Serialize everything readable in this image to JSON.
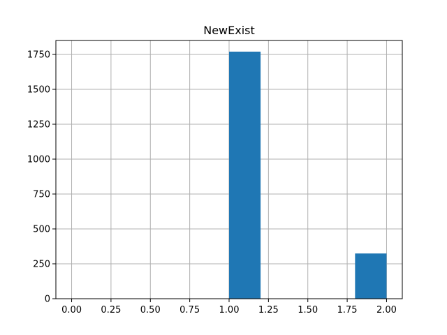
{
  "chart_data": {
    "type": "bar",
    "title": "NewExist",
    "xlabel": "",
    "ylabel": "",
    "bin_edges": [
      0.0,
      0.2,
      0.4,
      0.6,
      0.8,
      1.0,
      1.2,
      1.4,
      1.6,
      1.8,
      2.0
    ],
    "values": [
      0,
      0,
      0,
      0,
      0,
      1770,
      0,
      0,
      0,
      324
    ],
    "xlim": [
      -0.1,
      2.1
    ],
    "ylim": [
      0,
      1850
    ],
    "xticks": [
      0.0,
      0.25,
      0.5,
      0.75,
      1.0,
      1.25,
      1.5,
      1.75,
      2.0
    ],
    "xtick_labels": [
      "0.00",
      "0.25",
      "0.50",
      "0.75",
      "1.00",
      "1.25",
      "1.50",
      "1.75",
      "2.00"
    ],
    "yticks": [
      0,
      250,
      500,
      750,
      1000,
      1250,
      1500,
      1750
    ],
    "ytick_labels": [
      "0",
      "250",
      "500",
      "750",
      "1000",
      "1250",
      "1500",
      "1750"
    ],
    "grid": true,
    "bar_color": "#1f77b4",
    "grid_color": "#b0b0b0"
  }
}
